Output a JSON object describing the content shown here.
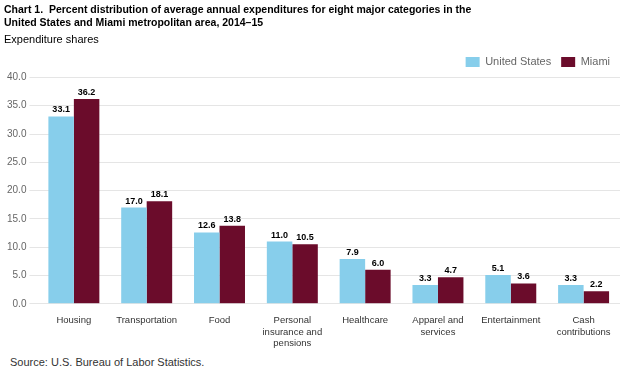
{
  "chart_data": {
    "type": "bar",
    "title": "Chart 1.  Percent distribution of average annual expenditures for eight major categories in the\nUnited States and Miami metropolitan area, 2014–15",
    "ylabel": "Expenditure shares",
    "annotations": [
      "Source: U.S. Bureau of Labor Statistics."
    ],
    "categories": [
      "Housing",
      "Transportation",
      "Food",
      "Personal\ninsurance and\npensions",
      "Healthcare",
      "Apparel and\nservices",
      "Entertainment",
      "Cash\ncontributions"
    ],
    "series": [
      {
        "name": "United States",
        "color": "#87CEEB",
        "values": [
          33.1,
          17.0,
          12.6,
          11.0,
          7.9,
          3.3,
          5.1,
          3.3
        ],
        "value_labels": [
          "33.1",
          "17.0",
          "12.6",
          "11.0",
          "7.9",
          "3.3",
          "5.1",
          "3.3"
        ]
      },
      {
        "name": "Miami",
        "color": "#6B0C2B",
        "values": [
          36.2,
          18.1,
          13.8,
          10.5,
          6.0,
          4.7,
          3.6,
          2.2
        ],
        "value_labels": [
          "36.2",
          "18.1",
          "13.8",
          "10.5",
          "6.0",
          "4.7",
          "3.6",
          "2.2"
        ]
      }
    ],
    "ylim": [
      0,
      40
    ],
    "yticks": [
      {
        "value": 0,
        "label": "0.0"
      },
      {
        "value": 5,
        "label": "5.0"
      },
      {
        "value": 10,
        "label": "10.0"
      },
      {
        "value": 15,
        "label": "15.0"
      },
      {
        "value": 20,
        "label": "20.0"
      },
      {
        "value": 25,
        "label": "25.0"
      },
      {
        "value": 30,
        "label": "30.0"
      },
      {
        "value": 35,
        "label": "35.0"
      },
      {
        "value": 40,
        "label": "40.0"
      }
    ],
    "grid": true,
    "legend": "upper right",
    "data_labels": true
  }
}
